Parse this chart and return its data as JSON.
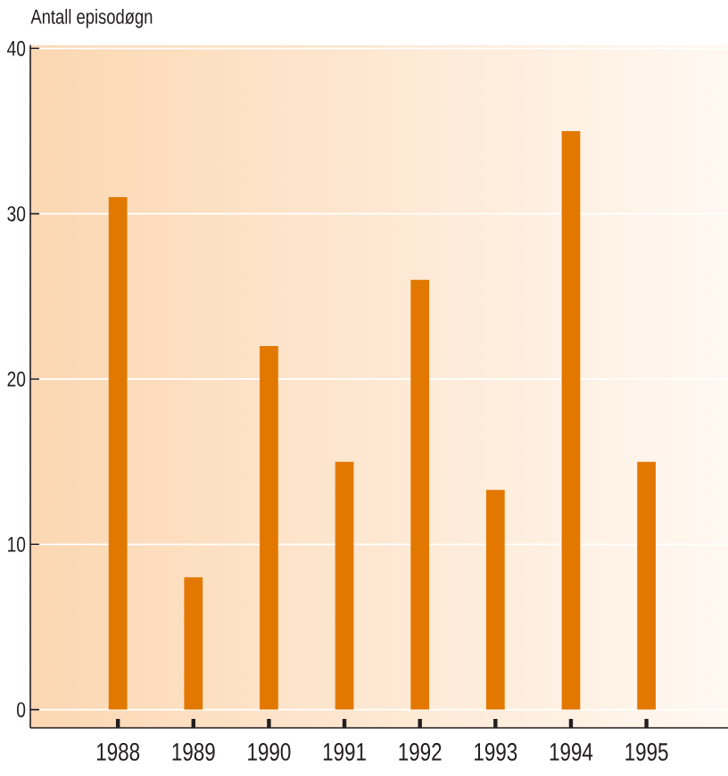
{
  "chart_data": {
    "type": "bar",
    "ylabel": "Antall episodøgn",
    "categories": [
      "1988",
      "1989",
      "1990",
      "1991",
      "1992",
      "1993",
      "1994",
      "1995"
    ],
    "values": [
      31,
      8,
      22,
      15,
      26,
      13.3,
      35,
      15
    ],
    "color": "#e37800",
    "ylim": [
      -1.1,
      40.2
    ],
    "yticks": [
      0,
      10,
      20,
      30,
      40
    ],
    "grid": "y"
  }
}
